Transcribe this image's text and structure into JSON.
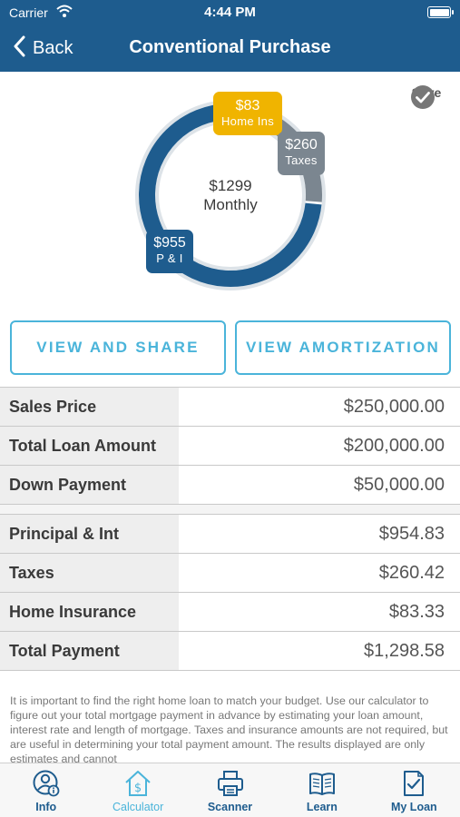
{
  "status_bar": {
    "carrier": "Carrier",
    "time": "4:44 PM"
  },
  "nav": {
    "back_label": "Back",
    "title": "Conventional Purchase"
  },
  "chart_data": {
    "type": "pie",
    "categories": [
      "P & I",
      "Taxes",
      "Home Ins"
    ],
    "values": [
      955,
      260,
      83
    ],
    "labels": [
      "$955",
      "$260",
      "$83"
    ],
    "colors": [
      "#1e5c8e",
      "#7b8690",
      "#f0b400"
    ],
    "center_amount": "$1299",
    "center_label": "Monthly"
  },
  "save_label": "Save",
  "buttons": {
    "view_share": "VIEW AND SHARE",
    "view_amortization": "VIEW AMORTIZATION"
  },
  "loan_table": [
    {
      "label": "Sales Price",
      "value": "$250,000.00"
    },
    {
      "label": "Total Loan Amount",
      "value": "$200,000.00"
    },
    {
      "label": "Down Payment",
      "value": "$50,000.00"
    }
  ],
  "payment_table": [
    {
      "label": "Principal & Int",
      "value": "$954.83"
    },
    {
      "label": "Taxes",
      "value": "$260.42"
    },
    {
      "label": "Home Insurance",
      "value": "$83.33"
    },
    {
      "label": "Total Payment",
      "value": "$1,298.58"
    }
  ],
  "disclaimer": "It is important to find the right home loan to match your budget. Use our calculator to figure out your total mortgage payment in advance by estimating your loan amount, interest rate and length of mortgage. Taxes and insurance amounts are not required, but are useful in determining your total payment amount.  The results displayed are only estimates and cannot",
  "tabs": [
    {
      "label": "Info",
      "icon": "info-person-icon"
    },
    {
      "label": "Calculator",
      "icon": "house-dollar-icon",
      "active": true
    },
    {
      "label": "Scanner",
      "icon": "printer-icon"
    },
    {
      "label": "Learn",
      "icon": "open-book-icon"
    },
    {
      "label": "My Loan",
      "icon": "document-check-icon"
    }
  ]
}
